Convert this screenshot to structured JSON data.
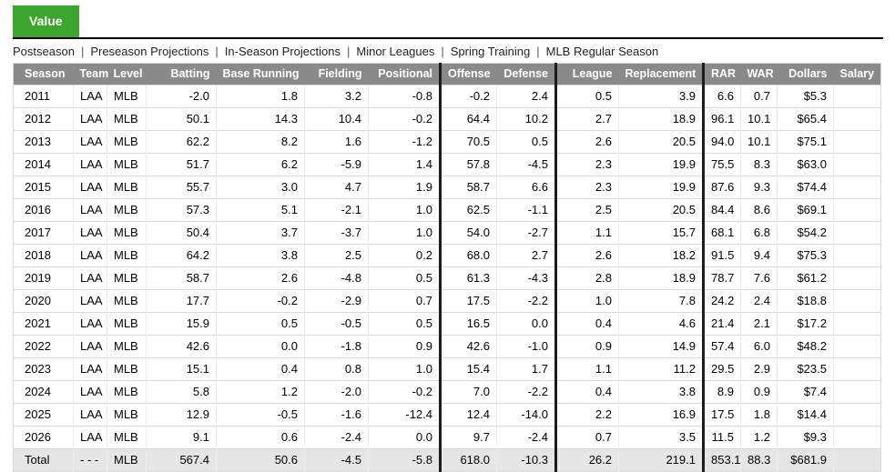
{
  "tab": {
    "label": "Value"
  },
  "nav": {
    "separator": "|",
    "items": [
      "Postseason",
      "Preseason Projections",
      "In-Season Projections",
      "Minor Leagues",
      "Spring Training",
      "MLB Regular Season"
    ]
  },
  "table": {
    "columns": [
      "Season",
      "Team",
      "Level",
      "Batting",
      "Base Running",
      "Fielding",
      "Positional",
      "Offense",
      "Defense",
      "League",
      "Replacement",
      "RAR",
      "WAR",
      "Dollars",
      "Salary"
    ],
    "rows": [
      [
        "2011",
        "LAA",
        "MLB",
        "-2.0",
        "1.8",
        "3.2",
        "-0.8",
        "-0.2",
        "2.4",
        "0.5",
        "3.9",
        "6.6",
        "0.7",
        "$5.3",
        ""
      ],
      [
        "2012",
        "LAA",
        "MLB",
        "50.1",
        "14.3",
        "10.4",
        "-0.2",
        "64.4",
        "10.2",
        "2.7",
        "18.9",
        "96.1",
        "10.1",
        "$65.4",
        ""
      ],
      [
        "2013",
        "LAA",
        "MLB",
        "62.2",
        "8.2",
        "1.6",
        "-1.2",
        "70.5",
        "0.5",
        "2.6",
        "20.5",
        "94.0",
        "10.1",
        "$75.1",
        ""
      ],
      [
        "2014",
        "LAA",
        "MLB",
        "51.7",
        "6.2",
        "-5.9",
        "1.4",
        "57.8",
        "-4.5",
        "2.3",
        "19.9",
        "75.5",
        "8.3",
        "$63.0",
        ""
      ],
      [
        "2015",
        "LAA",
        "MLB",
        "55.7",
        "3.0",
        "4.7",
        "1.9",
        "58.7",
        "6.6",
        "2.3",
        "19.9",
        "87.6",
        "9.3",
        "$74.4",
        ""
      ],
      [
        "2016",
        "LAA",
        "MLB",
        "57.3",
        "5.1",
        "-2.1",
        "1.0",
        "62.5",
        "-1.1",
        "2.5",
        "20.5",
        "84.4",
        "8.6",
        "$69.1",
        ""
      ],
      [
        "2017",
        "LAA",
        "MLB",
        "50.4",
        "3.7",
        "-3.7",
        "1.0",
        "54.0",
        "-2.7",
        "1.1",
        "15.7",
        "68.1",
        "6.8",
        "$54.2",
        ""
      ],
      [
        "2018",
        "LAA",
        "MLB",
        "64.2",
        "3.8",
        "2.5",
        "0.2",
        "68.0",
        "2.7",
        "2.6",
        "18.2",
        "91.5",
        "9.4",
        "$75.3",
        ""
      ],
      [
        "2019",
        "LAA",
        "MLB",
        "58.7",
        "2.6",
        "-4.8",
        "0.5",
        "61.3",
        "-4.3",
        "2.8",
        "18.9",
        "78.7",
        "7.6",
        "$61.2",
        ""
      ],
      [
        "2020",
        "LAA",
        "MLB",
        "17.7",
        "-0.2",
        "-2.9",
        "0.7",
        "17.5",
        "-2.2",
        "1.0",
        "7.8",
        "24.2",
        "2.4",
        "$18.8",
        ""
      ],
      [
        "2021",
        "LAA",
        "MLB",
        "15.9",
        "0.5",
        "-0.5",
        "0.5",
        "16.5",
        "0.0",
        "0.4",
        "4.6",
        "21.4",
        "2.1",
        "$17.2",
        ""
      ],
      [
        "2022",
        "LAA",
        "MLB",
        "42.6",
        "0.0",
        "-1.8",
        "0.9",
        "42.6",
        "-1.0",
        "0.9",
        "14.9",
        "57.4",
        "6.0",
        "$48.2",
        ""
      ],
      [
        "2023",
        "LAA",
        "MLB",
        "15.1",
        "0.4",
        "0.8",
        "1.0",
        "15.4",
        "1.7",
        "1.1",
        "11.2",
        "29.5",
        "2.9",
        "$23.5",
        ""
      ],
      [
        "2024",
        "LAA",
        "MLB",
        "5.8",
        "1.2",
        "-2.0",
        "-0.2",
        "7.0",
        "-2.2",
        "0.4",
        "3.8",
        "8.9",
        "0.9",
        "$7.4",
        ""
      ],
      [
        "2025",
        "LAA",
        "MLB",
        "12.9",
        "-0.5",
        "-1.6",
        "-12.4",
        "12.4",
        "-14.0",
        "2.2",
        "16.9",
        "17.5",
        "1.8",
        "$14.4",
        ""
      ],
      [
        "2026",
        "LAA",
        "MLB",
        "9.1",
        "0.6",
        "-2.4",
        "0.0",
        "9.7",
        "-2.4",
        "0.7",
        "3.5",
        "11.5",
        "1.2",
        "$9.3",
        ""
      ]
    ],
    "total": [
      "Total",
      "- - -",
      "MLB",
      "567.4",
      "50.6",
      "-4.5",
      "-5.8",
      "618.0",
      "-10.3",
      "26.2",
      "219.1",
      "853.1",
      "88.3",
      "$681.9",
      ""
    ]
  },
  "colors": {
    "accent_green": "#3CA52D",
    "header_gray": "#8A8A8A",
    "total_row_bg": "#E6E6E6",
    "group_separator": "#1C1C1C"
  }
}
